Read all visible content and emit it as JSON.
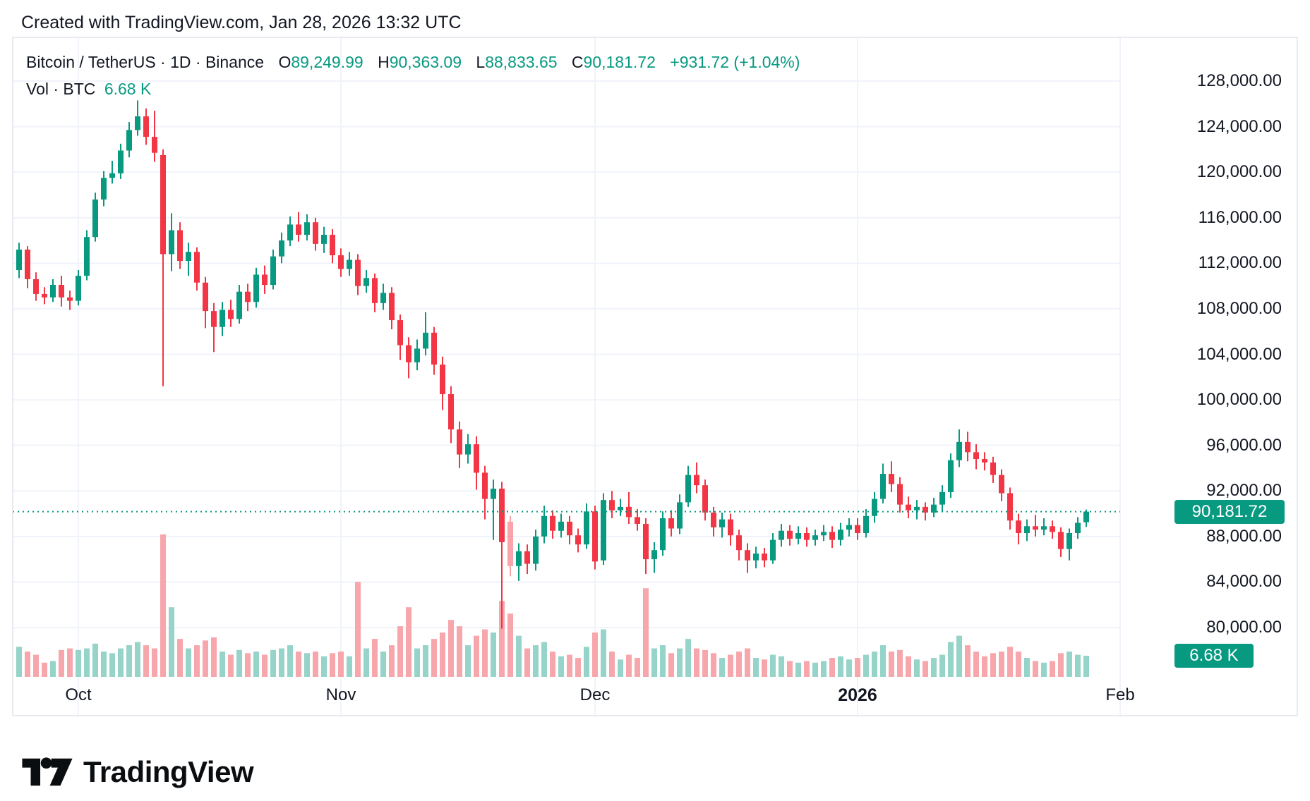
{
  "page": {
    "attribution": "Created with TradingView.com, Jan 28, 2026 13:32 UTC"
  },
  "legend": {
    "symbol": "Bitcoin / TetherUS · 1D · Binance",
    "open_label": "O",
    "open": "89,249.99",
    "high_label": "H",
    "high": "90,363.09",
    "low_label": "L",
    "low": "88,833.65",
    "close_label": "C",
    "close": "90,181.72",
    "change": "+931.72 (+1.04%)",
    "volume_label": "Vol · BTC",
    "volume_value": "6.68 K"
  },
  "axes": {
    "price_ticks": [
      "128,000.00",
      "124,000.00",
      "120,000.00",
      "116,000.00",
      "112,000.00",
      "108,000.00",
      "104,000.00",
      "100,000.00",
      "96,000.00",
      "92,000.00",
      "88,000.00",
      "84,000.00",
      "80,000.00"
    ],
    "time_ticks": [
      {
        "label": "Oct",
        "index": 7,
        "bold": false
      },
      {
        "label": "Nov",
        "index": 38,
        "bold": false
      },
      {
        "label": "Dec",
        "index": 68,
        "bold": false
      },
      {
        "label": "2026",
        "index": 99,
        "bold": true
      },
      {
        "label": "Feb",
        "index": 130,
        "bold": false
      }
    ],
    "last_price_label": "90,181.72",
    "last_volume_label": "6.68 K"
  },
  "branding": {
    "logo_text": "TradingView"
  },
  "colors": {
    "up": "#089981",
    "down": "#F23645",
    "vol_up": "#96D3C9",
    "vol_down": "#F7A6AC",
    "grid": "#F0F3FA",
    "border": "#E0E3EB",
    "text": "#131722",
    "badge": "#089981",
    "background": "#ffffff"
  },
  "chart_data": {
    "type": "candlestick",
    "title": "Bitcoin / TetherUS · 1D · Binance",
    "interval": "1D",
    "volume_unit": "K BTC",
    "last_price": 90181.72,
    "last_bar": {
      "open": 89249.99,
      "high": 90363.09,
      "low": 88833.65,
      "close": 90181.72,
      "change": 931.72,
      "change_pct": 1.04,
      "volume_k": 6.68
    },
    "price_axis": {
      "min": 79000,
      "max": 129800,
      "tick_step": 4000,
      "ticks": [
        128000,
        124000,
        120000,
        116000,
        112000,
        108000,
        104000,
        100000,
        96000,
        92000,
        88000,
        84000,
        80000
      ]
    },
    "time_axis": {
      "start": "2025-09-24",
      "end": "2026-01-28",
      "months": [
        "Oct",
        "Nov",
        "Dec",
        "2026",
        "Feb"
      ]
    },
    "faded_index": 58,
    "columns": [
      "date",
      "open",
      "high",
      "low",
      "close",
      "volume_k"
    ],
    "candles": [
      [
        "2025-09-24",
        111400,
        113800,
        110700,
        113200,
        9.5
      ],
      [
        "2025-09-25",
        113200,
        113500,
        109800,
        110600,
        8
      ],
      [
        "2025-09-26",
        110600,
        111200,
        108700,
        109300,
        7
      ],
      [
        "2025-09-27",
        109300,
        109900,
        108400,
        109000,
        4.5
      ],
      [
        "2025-09-28",
        109000,
        110600,
        108600,
        110100,
        5
      ],
      [
        "2025-09-29",
        110100,
        110900,
        108200,
        109000,
        8.5
      ],
      [
        "2025-09-30",
        109000,
        109600,
        107900,
        108700,
        9
      ],
      [
        "2025-10-01",
        108700,
        111400,
        108300,
        110900,
        8.5
      ],
      [
        "2025-10-02",
        110900,
        114900,
        110500,
        114300,
        9
      ],
      [
        "2025-10-03",
        114300,
        118200,
        113900,
        117600,
        10.5
      ],
      [
        "2025-10-04",
        117600,
        120100,
        117000,
        119500,
        8
      ],
      [
        "2025-10-05",
        119500,
        121000,
        119000,
        119900,
        7.5
      ],
      [
        "2025-10-06",
        119900,
        122500,
        119400,
        121900,
        9
      ],
      [
        "2025-10-07",
        121900,
        124400,
        121300,
        123700,
        10
      ],
      [
        "2025-10-08",
        123700,
        126300,
        123200,
        124900,
        11
      ],
      [
        "2025-10-09",
        124900,
        125600,
        122400,
        123100,
        10
      ],
      [
        "2025-10-10",
        123100,
        125400,
        120900,
        121700,
        9
      ],
      [
        "2025-10-11",
        121500,
        122000,
        101200,
        112800,
        45
      ],
      [
        "2025-10-12",
        112800,
        116400,
        111300,
        114900,
        22
      ],
      [
        "2025-10-13",
        114900,
        115600,
        111500,
        112200,
        12
      ],
      [
        "2025-10-14",
        112200,
        113800,
        110900,
        113000,
        9
      ],
      [
        "2025-10-15",
        113000,
        113400,
        109600,
        110300,
        10
      ],
      [
        "2025-10-16",
        110300,
        110800,
        106300,
        107800,
        11.5
      ],
      [
        "2025-10-17",
        107800,
        108500,
        104200,
        106400,
        12.5
      ],
      [
        "2025-10-18",
        106400,
        108600,
        105600,
        107900,
        8
      ],
      [
        "2025-10-19",
        107900,
        108800,
        106400,
        107100,
        7
      ],
      [
        "2025-10-20",
        107100,
        110100,
        106700,
        109500,
        8.5
      ],
      [
        "2025-10-21",
        109500,
        110200,
        107800,
        108600,
        7.5
      ],
      [
        "2025-10-22",
        108600,
        111600,
        108100,
        111000,
        8
      ],
      [
        "2025-10-23",
        111000,
        111800,
        109300,
        110100,
        7
      ],
      [
        "2025-10-24",
        110100,
        113200,
        109700,
        112600,
        8.5
      ],
      [
        "2025-10-25",
        112600,
        114700,
        112000,
        114000,
        9
      ],
      [
        "2025-10-26",
        114000,
        116100,
        113500,
        115400,
        10
      ],
      [
        "2025-10-27",
        115400,
        116500,
        113900,
        114500,
        8
      ],
      [
        "2025-10-28",
        114500,
        116300,
        114000,
        115600,
        7.5
      ],
      [
        "2025-10-29",
        115600,
        116000,
        113100,
        113700,
        8
      ],
      [
        "2025-10-30",
        113700,
        115200,
        112900,
        114500,
        6.5
      ],
      [
        "2025-10-31",
        114500,
        115000,
        112000,
        112700,
        7.5
      ],
      [
        "2025-11-01",
        112700,
        113300,
        110800,
        111500,
        8
      ],
      [
        "2025-11-02",
        111500,
        113000,
        110900,
        112300,
        6.5
      ],
      [
        "2025-11-03",
        112300,
        112800,
        109200,
        110000,
        30
      ],
      [
        "2025-11-04",
        110000,
        111400,
        109400,
        110700,
        9
      ],
      [
        "2025-11-05",
        110700,
        111100,
        107700,
        108500,
        12
      ],
      [
        "2025-11-06",
        108500,
        110200,
        107900,
        109400,
        8
      ],
      [
        "2025-11-07",
        109400,
        109900,
        106200,
        107000,
        10
      ],
      [
        "2025-11-08",
        107000,
        107500,
        103500,
        104800,
        16
      ],
      [
        "2025-11-09",
        104800,
        105500,
        101900,
        103300,
        22
      ],
      [
        "2025-11-10",
        103300,
        105300,
        102600,
        104500,
        9
      ],
      [
        "2025-11-11",
        104500,
        107700,
        103900,
        105900,
        10
      ],
      [
        "2025-11-12",
        105900,
        106400,
        102200,
        103100,
        12
      ],
      [
        "2025-11-13",
        103100,
        103800,
        99100,
        100500,
        14
      ],
      [
        "2025-11-14",
        100500,
        101200,
        96200,
        97400,
        18
      ],
      [
        "2025-11-15",
        97400,
        98100,
        94000,
        95200,
        16
      ],
      [
        "2025-11-16",
        95200,
        97000,
        94400,
        96100,
        10
      ],
      [
        "2025-11-17",
        96100,
        96800,
        92100,
        93600,
        13
      ],
      [
        "2025-11-18",
        93600,
        94200,
        89500,
        91300,
        15
      ],
      [
        "2025-11-19",
        91300,
        93000,
        87700,
        92200,
        14
      ],
      [
        "2025-11-20",
        92200,
        92800,
        79900,
        87500,
        24
      ],
      [
        "2025-11-21",
        89300,
        89800,
        84500,
        85400,
        20
      ],
      [
        "2025-11-22",
        85400,
        87400,
        84100,
        86700,
        13
      ],
      [
        "2025-11-23",
        86700,
        87300,
        84700,
        85600,
        9
      ],
      [
        "2025-11-24",
        85600,
        88600,
        85000,
        88000,
        10
      ],
      [
        "2025-11-25",
        88000,
        90700,
        87400,
        89800,
        11
      ],
      [
        "2025-11-26",
        89800,
        90300,
        87800,
        88500,
        8
      ],
      [
        "2025-11-27",
        88500,
        90000,
        87900,
        89300,
        6.5
      ],
      [
        "2025-11-28",
        89300,
        89800,
        87300,
        88100,
        7
      ],
      [
        "2025-11-29",
        88100,
        88700,
        86600,
        87300,
        6
      ],
      [
        "2025-11-30",
        87300,
        90900,
        86900,
        90200,
        9.5
      ],
      [
        "2025-12-01",
        90200,
        90700,
        85100,
        85800,
        14
      ],
      [
        "2025-12-02",
        85900,
        91800,
        85500,
        91200,
        15
      ],
      [
        "2025-12-03",
        91200,
        92000,
        89600,
        90300,
        8
      ],
      [
        "2025-12-04",
        90300,
        91300,
        89800,
        90600,
        5.5
      ],
      [
        "2025-12-05",
        90600,
        91900,
        89100,
        89700,
        7
      ],
      [
        "2025-12-06",
        89700,
        90400,
        88500,
        89100,
        6
      ],
      [
        "2025-12-07",
        89100,
        89600,
        84700,
        86000,
        28
      ],
      [
        "2025-12-08",
        86000,
        87500,
        84800,
        86800,
        9
      ],
      [
        "2025-12-09",
        86800,
        90200,
        86300,
        89600,
        10
      ],
      [
        "2025-12-10",
        89600,
        90300,
        88000,
        88700,
        7.5
      ],
      [
        "2025-12-11",
        88700,
        91700,
        88200,
        91000,
        9
      ],
      [
        "2025-12-12",
        91000,
        94200,
        90600,
        93400,
        12
      ],
      [
        "2025-12-13",
        93400,
        94500,
        91800,
        92500,
        9
      ],
      [
        "2025-12-14",
        92500,
        93000,
        89400,
        90100,
        8.5
      ],
      [
        "2025-12-15",
        90100,
        90600,
        88000,
        88800,
        7.5
      ],
      [
        "2025-12-16",
        88800,
        90100,
        87900,
        89500,
        6
      ],
      [
        "2025-12-17",
        89500,
        90000,
        87200,
        88100,
        7
      ],
      [
        "2025-12-18",
        88100,
        88600,
        85900,
        86800,
        8
      ],
      [
        "2025-12-19",
        86800,
        87400,
        84800,
        85900,
        9
      ],
      [
        "2025-12-20",
        85900,
        87100,
        85200,
        86500,
        6
      ],
      [
        "2025-12-21",
        86500,
        87000,
        85300,
        85900,
        5.5
      ],
      [
        "2025-12-22",
        85900,
        88300,
        85600,
        87700,
        7
      ],
      [
        "2025-12-23",
        87700,
        89100,
        87100,
        88500,
        6.5
      ],
      [
        "2025-12-24",
        88500,
        89000,
        87200,
        87800,
        5
      ],
      [
        "2025-12-25",
        87800,
        88900,
        87300,
        88300,
        4.5
      ],
      [
        "2025-12-26",
        88300,
        88800,
        87100,
        87700,
        5
      ],
      [
        "2025-12-27",
        87700,
        88600,
        87200,
        88100,
        4.5
      ],
      [
        "2025-12-28",
        88100,
        89000,
        87600,
        88400,
        5
      ],
      [
        "2025-12-29",
        88400,
        88900,
        87000,
        87700,
        6
      ],
      [
        "2025-12-30",
        87700,
        89200,
        87200,
        88600,
        6.5
      ],
      [
        "2025-12-31",
        88600,
        89600,
        88000,
        89000,
        5.5
      ],
      [
        "2026-01-01",
        89000,
        89600,
        87700,
        88300,
        6
      ],
      [
        "2026-01-02",
        88300,
        90400,
        87900,
        89800,
        7
      ],
      [
        "2026-01-03",
        89800,
        91900,
        89200,
        91300,
        8
      ],
      [
        "2026-01-04",
        91300,
        94400,
        90900,
        93500,
        10
      ],
      [
        "2026-01-05",
        93500,
        94600,
        91900,
        92600,
        8
      ],
      [
        "2026-01-06",
        92600,
        93200,
        90100,
        90800,
        8.5
      ],
      [
        "2026-01-07",
        90800,
        91500,
        89600,
        90300,
        6.5
      ],
      [
        "2026-01-08",
        90300,
        91200,
        89500,
        90600,
        5.5
      ],
      [
        "2026-01-09",
        90600,
        91000,
        89400,
        90100,
        5
      ],
      [
        "2026-01-10",
        90100,
        91400,
        89700,
        90800,
        6
      ],
      [
        "2026-01-11",
        90800,
        92500,
        90200,
        91900,
        7
      ],
      [
        "2026-01-12",
        91900,
        95300,
        91400,
        94700,
        11
      ],
      [
        "2026-01-13",
        94700,
        97400,
        94100,
        96300,
        13
      ],
      [
        "2026-01-14",
        96300,
        97200,
        94600,
        95400,
        10
      ],
      [
        "2026-01-15",
        95400,
        96100,
        93900,
        94800,
        8
      ],
      [
        "2026-01-16",
        94800,
        95400,
        93800,
        94500,
        6.5
      ],
      [
        "2026-01-17",
        94500,
        95000,
        92700,
        93400,
        7.5
      ],
      [
        "2026-01-18",
        93400,
        93900,
        91100,
        91800,
        8
      ],
      [
        "2026-01-19",
        91800,
        92300,
        88600,
        89400,
        9.5
      ],
      [
        "2026-01-20",
        89400,
        90000,
        87300,
        88300,
        8
      ],
      [
        "2026-01-21",
        88300,
        89500,
        87600,
        88900,
        6
      ],
      [
        "2026-01-22",
        88900,
        89900,
        88000,
        88600,
        5
      ],
      [
        "2026-01-23",
        88600,
        89600,
        88100,
        88900,
        4.5
      ],
      [
        "2026-01-24",
        88900,
        89400,
        87800,
        88400,
        5
      ],
      [
        "2026-01-25",
        88400,
        88800,
        86200,
        86900,
        7.5
      ],
      [
        "2026-01-26",
        86900,
        88700,
        85900,
        88300,
        8
      ],
      [
        "2026-01-27",
        88300,
        89700,
        87800,
        89200,
        7
      ],
      [
        "2026-01-28",
        89249.99,
        90363.09,
        88833.65,
        90181.72,
        6.68
      ]
    ]
  }
}
